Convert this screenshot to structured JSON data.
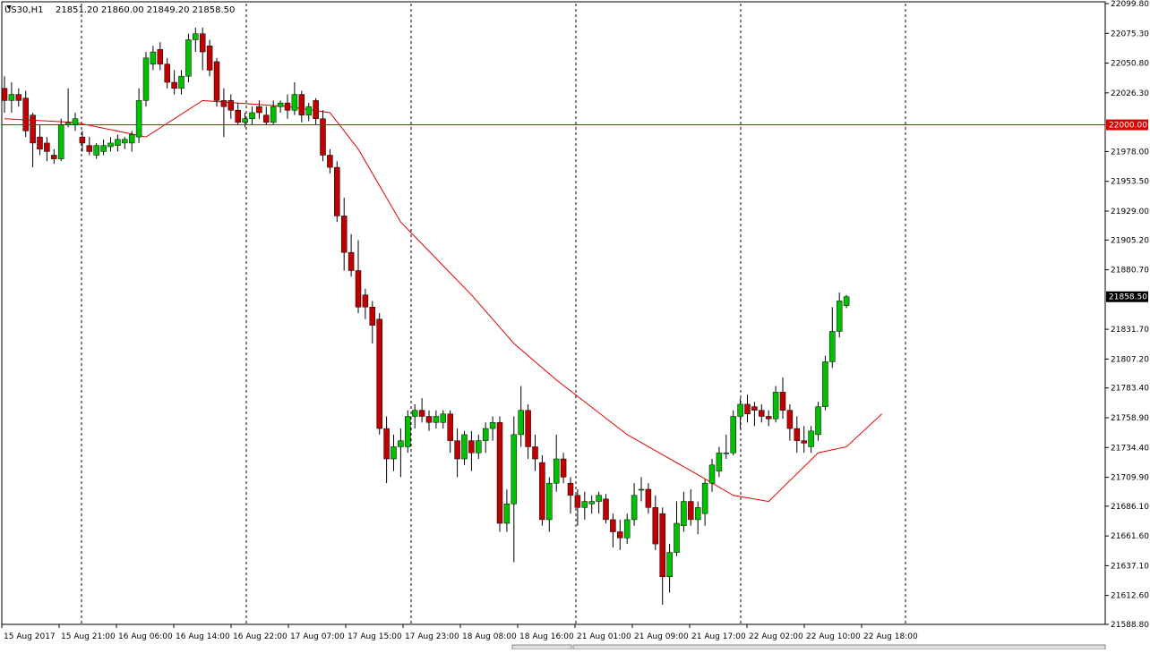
{
  "header": {
    "symbol": "US30,H1",
    "ohlc": "21851.20 21860.00 21849.20 21858.50"
  },
  "colors": {
    "bull": "#00c000",
    "bear": "#c00000",
    "ma": "#e00000",
    "hline": "#e00000",
    "grid": "#000000"
  },
  "chart_data": {
    "type": "candlestick",
    "symbol": "US30",
    "timeframe": "H1",
    "xlabel": "",
    "ylabel": "",
    "ylim": [
      21588.8,
      22099.8
    ],
    "legend": "none",
    "grid": "vertical dashed",
    "y_ticks": [
      "22099.80",
      "22075.30",
      "22050.80",
      "22026.30",
      "22000.00",
      "21978.00",
      "21953.50",
      "21929.00",
      "21905.20",
      "21880.70",
      "21858.50",
      "21831.70",
      "21807.20",
      "21783.40",
      "21758.90",
      "21734.40",
      "21709.90",
      "21686.10",
      "21661.60",
      "21637.10",
      "21612.60",
      "21588.80"
    ],
    "x_ticks": [
      "15 Aug 2017",
      "15 Aug 21:00",
      "16 Aug 06:00",
      "16 Aug 14:00",
      "16 Aug 22:00",
      "17 Aug 07:00",
      "17 Aug 15:00",
      "17 Aug 23:00",
      "18 Aug 08:00",
      "18 Aug 16:00",
      "21 Aug 01:00",
      "21 Aug 09:00",
      "21 Aug 17:00",
      "22 Aug 02:00",
      "22 Aug 10:00",
      "22 Aug 18:00"
    ],
    "horizontal_line": {
      "value": 22000.0,
      "label": "22000.00"
    },
    "current_price": {
      "value": 21858.5,
      "label": "21858.50"
    },
    "candles": [
      [
        22030,
        22040,
        22010,
        22020
      ],
      [
        22020,
        22035,
        22010,
        22025
      ],
      [
        22025,
        22030,
        22015,
        22020
      ],
      [
        22022,
        22028,
        21990,
        21995
      ],
      [
        22008,
        22010,
        21965,
        21985
      ],
      [
        21990,
        22000,
        21975,
        21980
      ],
      [
        21985,
        21990,
        21970,
        21978
      ],
      [
        21975,
        21980,
        21968,
        21972
      ],
      [
        21972,
        22005,
        21970,
        22000
      ],
      [
        22000,
        22030,
        21998,
        22002
      ],
      [
        22000,
        22010,
        21995,
        22005
      ],
      [
        21990,
        21995,
        21978,
        21985
      ],
      [
        21983,
        21990,
        21975,
        21978
      ],
      [
        21975,
        21985,
        21972,
        21983
      ],
      [
        21978,
        21988,
        21975,
        21983
      ],
      [
        21982,
        21990,
        21978,
        21985
      ],
      [
        21983,
        21992,
        21978,
        21988
      ],
      [
        21985,
        21990,
        21980,
        21988
      ],
      [
        21985,
        21995,
        21978,
        21992
      ],
      [
        21990,
        22030,
        21985,
        22020
      ],
      [
        22020,
        22060,
        22015,
        22055
      ],
      [
        22050,
        22065,
        22045,
        22060
      ],
      [
        22062,
        22068,
        22045,
        22050
      ],
      [
        22050,
        22055,
        22030,
        22035
      ],
      [
        22035,
        22045,
        22025,
        22030
      ],
      [
        22030,
        22045,
        22025,
        22040
      ],
      [
        22040,
        22075,
        22035,
        22070
      ],
      [
        22070,
        22080,
        22060,
        22075
      ],
      [
        22075,
        22080,
        22045,
        22060
      ],
      [
        22065,
        22070,
        22040,
        22045
      ],
      [
        22052,
        22055,
        22015,
        22020
      ],
      [
        22020,
        22030,
        21990,
        22015
      ],
      [
        22020,
        22025,
        22005,
        22012
      ],
      [
        22012,
        22018,
        22000,
        22002
      ],
      [
        22002,
        22010,
        21998,
        22005
      ],
      [
        22005,
        22015,
        22000,
        22010
      ],
      [
        22015,
        22020,
        22005,
        22010
      ],
      [
        22008,
        22015,
        22000,
        22002
      ],
      [
        22002,
        22020,
        22000,
        22015
      ],
      [
        22015,
        22020,
        22010,
        22018
      ],
      [
        22018,
        22025,
        22005,
        22012
      ],
      [
        22012,
        22035,
        22008,
        22025
      ],
      [
        22025,
        22028,
        22002,
        22008
      ],
      [
        22008,
        22018,
        22003,
        22015
      ],
      [
        22020,
        22022,
        22000,
        22005
      ],
      [
        22005,
        22012,
        21970,
        21975
      ],
      [
        21975,
        21980,
        21960,
        21965
      ],
      [
        21965,
        21970,
        21920,
        21925
      ],
      [
        21925,
        21940,
        21880,
        21895
      ],
      [
        21895,
        21910,
        21875,
        21880
      ],
      [
        21880,
        21905,
        21845,
        21850
      ],
      [
        21860,
        21865,
        21840,
        21850
      ],
      [
        21850,
        21855,
        21820,
        21835
      ],
      [
        21840,
        21845,
        21745,
        21750
      ],
      [
        21750,
        21760,
        21705,
        21725
      ],
      [
        21725,
        21745,
        21715,
        21735
      ],
      [
        21735,
        21750,
        21710,
        21740
      ],
      [
        21735,
        21765,
        21730,
        21760
      ],
      [
        21760,
        21770,
        21750,
        21765
      ],
      [
        21765,
        21775,
        21755,
        21760
      ],
      [
        21760,
        21765,
        21748,
        21755
      ],
      [
        21755,
        21765,
        21750,
        21760
      ],
      [
        21755,
        21765,
        21750,
        21762
      ],
      [
        21762,
        21765,
        21730,
        21740
      ],
      [
        21740,
        21750,
        21710,
        21725
      ],
      [
        21725,
        21748,
        21720,
        21745
      ],
      [
        21740,
        21748,
        21715,
        21730
      ],
      [
        21730,
        21745,
        21725,
        21740
      ],
      [
        21740,
        21755,
        21730,
        21750
      ],
      [
        21750,
        21760,
        21740,
        21755
      ],
      [
        21755,
        21760,
        21665,
        21672
      ],
      [
        21672,
        21700,
        21665,
        21688
      ],
      [
        21688,
        21760,
        21640,
        21745
      ],
      [
        21745,
        21785,
        21735,
        21765
      ],
      [
        21765,
        21770,
        21725,
        21735
      ],
      [
        21735,
        21745,
        21715,
        21725
      ],
      [
        21722,
        21728,
        21670,
        21675
      ],
      [
        21675,
        21710,
        21665,
        21705
      ],
      [
        21705,
        21745,
        21698,
        21725
      ],
      [
        21725,
        21730,
        21705,
        21710
      ],
      [
        21705,
        21710,
        21680,
        21695
      ],
      [
        21695,
        21700,
        21670,
        21685
      ],
      [
        21685,
        21698,
        21675,
        21690
      ],
      [
        21688,
        21695,
        21680,
        21690
      ],
      [
        21690,
        21698,
        21680,
        21695
      ],
      [
        21692,
        21696,
        21672,
        21675
      ],
      [
        21675,
        21680,
        21652,
        21665
      ],
      [
        21665,
        21675,
        21650,
        21660
      ],
      [
        21660,
        21680,
        21655,
        21675
      ],
      [
        21675,
        21705,
        21670,
        21695
      ],
      [
        21700,
        21710,
        21690,
        21700
      ],
      [
        21700,
        21705,
        21680,
        21685
      ],
      [
        21685,
        21695,
        21650,
        21655
      ],
      [
        21680,
        21685,
        21605,
        21628
      ],
      [
        21628,
        21655,
        21615,
        21648
      ],
      [
        21648,
        21690,
        21645,
        21672
      ],
      [
        21670,
        21698,
        21665,
        21690
      ],
      [
        21690,
        21700,
        21670,
        21675
      ],
      [
        21675,
        21690,
        21663,
        21685
      ],
      [
        21680,
        21708,
        21670,
        21705
      ],
      [
        21705,
        21725,
        21698,
        21720
      ],
      [
        21715,
        21735,
        21710,
        21730
      ],
      [
        21730,
        21745,
        21725,
        21730
      ],
      [
        21730,
        21765,
        21728,
        21760
      ],
      [
        21760,
        21775,
        21750,
        21770
      ],
      [
        21770,
        21778,
        21755,
        21762
      ],
      [
        21768,
        21772,
        21752,
        21765
      ],
      [
        21765,
        21770,
        21755,
        21760
      ],
      [
        21760,
        21765,
        21752,
        21758
      ],
      [
        21758,
        21785,
        21755,
        21780
      ],
      [
        21780,
        21792,
        21758,
        21765
      ],
      [
        21765,
        21770,
        21740,
        21750
      ],
      [
        21750,
        21760,
        21730,
        21740
      ],
      [
        21740,
        21752,
        21730,
        21738
      ],
      [
        21735,
        21752,
        21730,
        21748
      ],
      [
        21745,
        21772,
        21740,
        21768
      ],
      [
        21768,
        21810,
        21765,
        21805
      ],
      [
        21805,
        21850,
        21800,
        21830
      ],
      [
        21830,
        21862,
        21825,
        21855
      ],
      [
        21851.2,
        21860,
        21849.2,
        21858.5
      ]
    ],
    "ma": {
      "period_hint": "red moving average",
      "points": [
        [
          0,
          22005
        ],
        [
          10,
          22002
        ],
        [
          20,
          21990
        ],
        [
          28,
          22020
        ],
        [
          40,
          22015
        ],
        [
          46,
          22010
        ],
        [
          50,
          21980
        ],
        [
          56,
          21920
        ],
        [
          66,
          21860
        ],
        [
          72,
          21820
        ],
        [
          78,
          21790
        ],
        [
          88,
          21745
        ],
        [
          98,
          21712
        ],
        [
          103,
          21695
        ],
        [
          108,
          21690
        ],
        [
          115,
          21730
        ],
        [
          119,
          21735
        ],
        [
          124,
          21762
        ]
      ]
    }
  }
}
